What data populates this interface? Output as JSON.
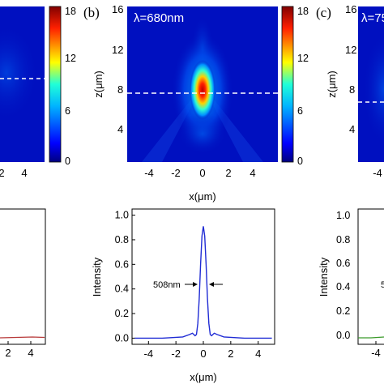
{
  "panels": {
    "left_label": "",
    "center_label": "(b)",
    "right_label": "(c)",
    "center_wavelength": "λ=680nm",
    "right_wavelength": "λ=75"
  },
  "colors": {
    "dashed_line": "#ffffff",
    "center_curve": "#1f2bd4",
    "right_curve": "#3a9a2a",
    "left_curve": "#b83a3a"
  },
  "chart_data": [
    {
      "type": "heatmap",
      "id": "heatmap-left",
      "xlabel": "",
      "ylabel": "",
      "x_ticks": [
        "2",
        "4"
      ],
      "colorbar": {
        "ticks": [
          "18",
          "12",
          "6",
          "0"
        ],
        "range": [
          0,
          18
        ]
      },
      "dashed_line_z": 7.8
    },
    {
      "type": "heatmap",
      "id": "heatmap-center",
      "title": "",
      "xlabel": "x(μm)",
      "ylabel": "z(μm)",
      "xlim": [
        -6,
        6
      ],
      "ylim": [
        0,
        16
      ],
      "x_ticks": [
        "-4",
        "-2",
        "0",
        "2",
        "4"
      ],
      "y_ticks": [
        "16",
        "12",
        "8",
        "4"
      ],
      "colorbar": {
        "ticks": [
          "18",
          "12",
          "6",
          "0"
        ],
        "range": [
          0,
          18
        ]
      },
      "focus": {
        "x": 0,
        "z": 7.8,
        "peak": 18
      },
      "dashed_line_z": 7.8
    },
    {
      "type": "heatmap",
      "id": "heatmap-right",
      "ylabel": "z(μm)",
      "y_ticks": [
        "16",
        "12",
        "8",
        "4"
      ],
      "x_ticks": [
        "-4"
      ],
      "dashed_line_z": 6.8
    },
    {
      "type": "line",
      "id": "profile-center",
      "xlabel": "x(μm)",
      "ylabel": "Intensity",
      "xlim": [
        -5.2,
        5.2
      ],
      "ylim": [
        -0.05,
        1.05
      ],
      "x_ticks": [
        "-4",
        "-2",
        "0",
        "2",
        "4"
      ],
      "y_ticks": [
        "1.0",
        "0.8",
        "0.6",
        "0.4",
        "0.2",
        "0.0"
      ],
      "fwhm_label": "508nm",
      "series": [
        {
          "x": [
            -5,
            -3,
            -1.5,
            -1,
            -0.8,
            -0.6,
            -0.5,
            -0.4,
            -0.3,
            -0.2,
            -0.1,
            0,
            0.1,
            0.2,
            0.3,
            0.4,
            0.5,
            0.6,
            0.8,
            1,
            1.5,
            3,
            5
          ],
          "y": [
            0.0,
            0.0,
            0.01,
            0.03,
            0.04,
            0.02,
            0.03,
            0.12,
            0.32,
            0.6,
            0.83,
            0.91,
            0.83,
            0.6,
            0.32,
            0.12,
            0.03,
            0.02,
            0.04,
            0.03,
            0.01,
            0.0,
            0.0
          ]
        }
      ]
    },
    {
      "type": "line",
      "id": "profile-left",
      "x_ticks": [
        "2",
        "4"
      ],
      "series": [
        {
          "x": [
            0,
            5
          ],
          "y": [
            0.02,
            0.03
          ]
        }
      ]
    },
    {
      "type": "line",
      "id": "profile-right",
      "ylabel": "Intensity",
      "y_ticks": [
        "1.0",
        "0.8",
        "0.6",
        "0.4",
        "0.2",
        "0.0"
      ],
      "x_ticks": [
        "-4"
      ],
      "partial_label": "5",
      "series": [
        {
          "x": [
            -5,
            -3
          ],
          "y": [
            0.0,
            0.02
          ]
        }
      ]
    }
  ]
}
